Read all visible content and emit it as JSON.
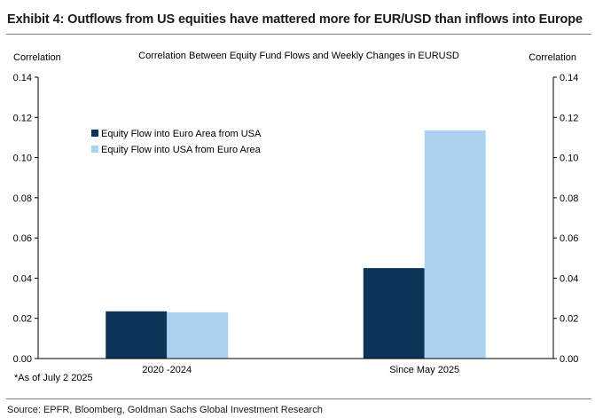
{
  "exhibit_title": "Exhibit 4: Outflows from US equities have mattered more for EUR/USD than inflows into Europe",
  "source": "Source: EPFR, Bloomberg, Goldman Sachs Global Investment Research",
  "chart_data": {
    "type": "bar",
    "title": "Correlation Between Equity Fund Flows and Weekly Changes in EURUSD",
    "ylabel_left": "Correlation",
    "ylabel_right": "Correlation",
    "categories": [
      "2020 -2024",
      "Since May 2025"
    ],
    "series": [
      {
        "name": "Equity Flow into Euro Area from USA",
        "color": "#0c3358",
        "values": [
          0.0235,
          0.045
        ]
      },
      {
        "name": "Equity Flow into USA from Euro Area",
        "color": "#abd3f0",
        "values": [
          0.023,
          0.1135
        ]
      }
    ],
    "ylim": [
      0,
      0.14
    ],
    "yticks": [
      "0.00",
      "0.02",
      "0.04",
      "0.06",
      "0.08",
      "0.10",
      "0.12",
      "0.14"
    ],
    "legend_position": "top-left",
    "grid": false,
    "footnote": "*As of July 2 2025"
  }
}
